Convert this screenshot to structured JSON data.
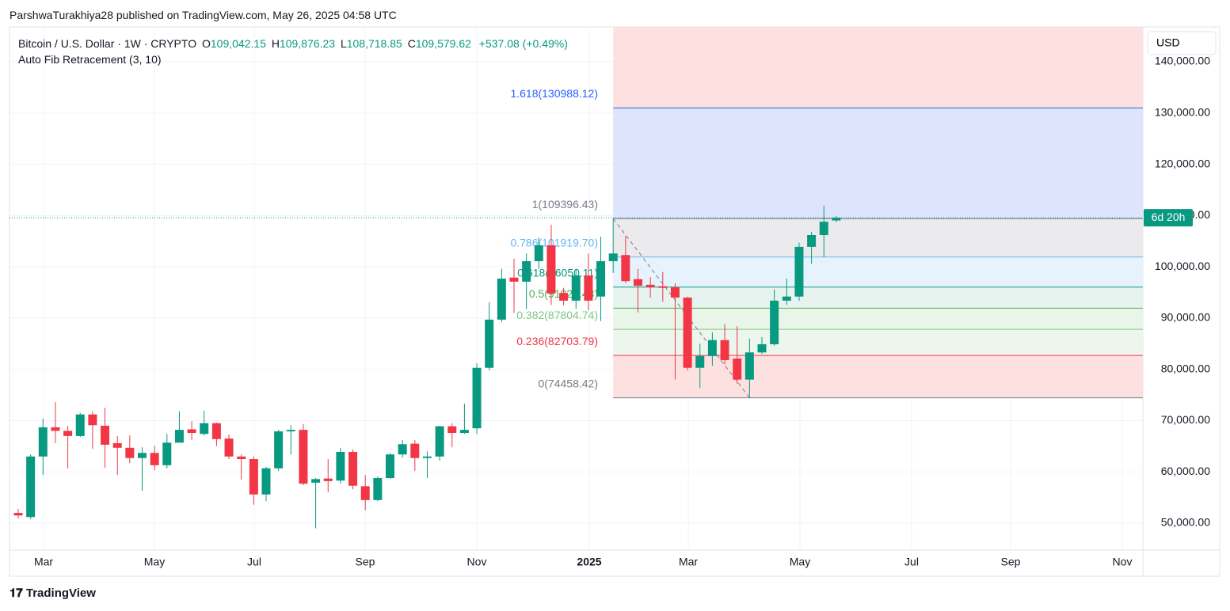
{
  "header": {
    "attribution": "ParshwaTurakhiya28 published on TradingView.com, May 26, 2025 04:58 UTC",
    "logo": "TradingView"
  },
  "chart_data": {
    "type": "candlestick",
    "symbol": "Bitcoin / U.S. Dollar · 1W · CRYPTO",
    "legend": [
      {
        "key": "O",
        "text": "109,042.15"
      },
      {
        "key": "H",
        "text": "109,876.23"
      },
      {
        "key": "L",
        "text": "108,718.85"
      },
      {
        "key": "C",
        "text": "109,579.62"
      }
    ],
    "change": "+537.08 (+0.49%)",
    "indicator": "Auto Fib Retracement (3, 10)",
    "currency": "USD",
    "countdown": "6d 20h",
    "up_color": "#089981",
    "down_color": "#f23645",
    "x_labels": [
      "Mar",
      "May",
      "Jul",
      "Sep",
      "Nov",
      "2025",
      "Mar",
      "May",
      "Jul",
      "Sep",
      "Nov"
    ],
    "ylim": [
      44750,
      146800
    ],
    "yticks": [
      {
        "value": 50000,
        "label": "50,000.00"
      },
      {
        "value": 60000,
        "label": "60,000.00"
      },
      {
        "value": 70000,
        "label": "70,000.00"
      },
      {
        "value": 80000,
        "label": "80,000.00"
      },
      {
        "value": 90000,
        "label": "90,000.00"
      },
      {
        "value": 100000,
        "label": "100,000.00"
      },
      {
        "value": 110000,
        "label": "110,000.00"
      },
      {
        "value": 120000,
        "label": "120,000.00"
      },
      {
        "value": 130000,
        "label": "130,000.00"
      },
      {
        "value": 140000,
        "label": "140,000.00"
      }
    ],
    "grid": true,
    "open": [
      52000,
      51200,
      63000,
      68700,
      68000,
      67000,
      71200,
      69000,
      65600,
      64700,
      62700,
      63700,
      61300,
      65700,
      68300,
      67400,
      69500,
      66500,
      63000,
      62500,
      55600,
      60700,
      67900,
      68200,
      57900,
      58700,
      58300,
      63900,
      57200,
      54500,
      58800,
      63400,
      65500,
      62700,
      63000,
      68900,
      67600,
      68500,
      80300,
      89700,
      97900,
      97100,
      101100,
      104200,
      94900,
      93400,
      98300,
      94200,
      101100,
      102300,
      97600,
      96500,
      96200,
      96000,
      94000,
      80300,
      82600,
      85700,
      82100,
      78000,
      83300,
      84900,
      93400,
      94200,
      103900,
      106200,
      109042.15
    ],
    "high": [
      52800,
      63400,
      70400,
      73600,
      69000,
      71500,
      71800,
      72500,
      67000,
      67100,
      64800,
      65100,
      67400,
      71800,
      69900,
      71900,
      69600,
      67300,
      63400,
      63000,
      61000,
      68200,
      69100,
      69300,
      58800,
      62500,
      64700,
      64400,
      59400,
      59100,
      63700,
      66200,
      66200,
      64000,
      69000,
      69500,
      73300,
      81200,
      93100,
      99600,
      101600,
      102600,
      105700,
      108200,
      95900,
      99600,
      102600,
      105900,
      109396.43,
      106000,
      99600,
      98000,
      99000,
      96800,
      94200,
      85000,
      87200,
      88800,
      88400,
      86000,
      86300,
      95600,
      97700,
      104700,
      106800,
      111900,
      109876.23
    ],
    "low": [
      50900,
      50800,
      59400,
      65600,
      60700,
      66800,
      64500,
      60800,
      59400,
      61700,
      56300,
      60300,
      60700,
      65900,
      66200,
      67100,
      65000,
      62500,
      58500,
      53600,
      54300,
      60200,
      63400,
      57400,
      49000,
      56000,
      57700,
      56600,
      52500,
      54300,
      58600,
      62800,
      60200,
      58800,
      62200,
      64800,
      67400,
      67400,
      79800,
      89200,
      91000,
      91800,
      99600,
      92600,
      92500,
      91800,
      91500,
      89400,
      98800,
      96800,
      91100,
      94000,
      93200,
      78000,
      79800,
      76400,
      80700,
      81000,
      77200,
      74458.42,
      83000,
      84600,
      92600,
      93400,
      100600,
      101900,
      108718.85
    ],
    "close": [
      51500,
      63000,
      68700,
      68000,
      67000,
      71200,
      69100,
      65300,
      64700,
      62700,
      63700,
      61300,
      65700,
      68200,
      67600,
      69500,
      66400,
      63000,
      62500,
      55600,
      60700,
      67900,
      68200,
      57700,
      58600,
      58200,
      63900,
      57300,
      54500,
      58800,
      63400,
      65400,
      62700,
      63000,
      68900,
      67600,
      68200,
      80300,
      89700,
      97700,
      97100,
      101100,
      104200,
      94800,
      93400,
      98300,
      93400,
      101100,
      102600,
      97200,
      96300,
      96000,
      95900,
      94000,
      80300,
      82600,
      85700,
      81800,
      78000,
      83300,
      84900,
      93400,
      94200,
      103900,
      106200,
      108800,
      109579.62
    ],
    "fib": [
      {
        "label": "1.618(130988.12)",
        "value": 130988.12,
        "color": "#2962ff",
        "fill": "#fde1e1"
      },
      {
        "label": "1(109396.43)",
        "value": 109396.43,
        "color": "#787b86",
        "fill": "#dde4fc"
      },
      {
        "label": "0.786(101919.70)",
        "value": 101919.7,
        "color": "#64b5f6",
        "fill": "#ebebed"
      },
      {
        "label": "0.618(96050.11)",
        "value": 96050.11,
        "color": "#089981",
        "fill": "#e6f3fd"
      },
      {
        "label": "0.5(91927.43)",
        "value": 91927.43,
        "color": "#4caf50",
        "fill": "#e6f3ef"
      },
      {
        "label": "0.382(87804.74)",
        "value": 87804.74,
        "color": "#81c784",
        "fill": "#e9f5e9"
      },
      {
        "label": "0.236(82703.79)",
        "value": 82703.79,
        "color": "#f23645",
        "fill": "#ecf6ec"
      },
      {
        "label": "0(74458.42)",
        "value": 74458.42,
        "color": "#787b86",
        "fill": "#fde1e1"
      }
    ]
  }
}
